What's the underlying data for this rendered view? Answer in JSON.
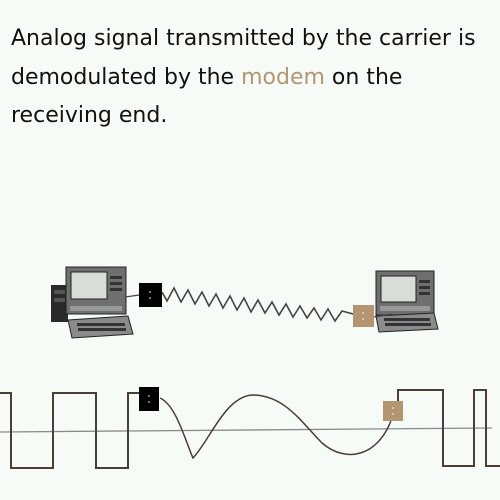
{
  "caption": {
    "before": "Analog signal transmitted by the carrier is demodulated by the ",
    "highlight": "modem",
    "after": " on the receiving end."
  },
  "colors": {
    "background": "#f7fbf8",
    "text": "#111111",
    "highlight": "#b39671",
    "sending_modem": "#000000",
    "receiving_modem": "#b39671",
    "signal": "#4a3e36",
    "carrier_line": "#444444",
    "axis": "#8a8a8a"
  },
  "icons": {
    "sending_computer": "desktop-computer-icon",
    "receiving_computer": "desktop-computer-icon",
    "sending_modem": "modem-box-icon",
    "receiving_modem": "modem-box-icon"
  }
}
